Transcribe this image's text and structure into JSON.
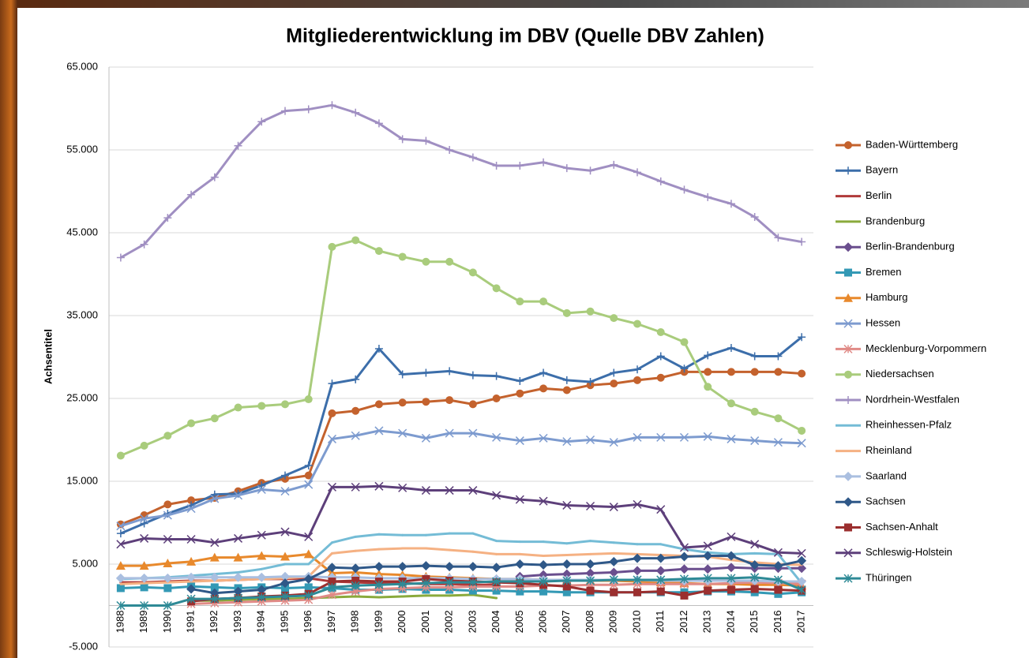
{
  "chart_data": {
    "type": "line",
    "title": "Mitgliederentwicklung im DBV (Quelle DBV Zahlen)",
    "y_label": "Achsentitel",
    "categories": [
      "1988",
      "1989",
      "1990",
      "1991",
      "1992",
      "1993",
      "1994",
      "1995",
      "1996",
      "1997",
      "1998",
      "1999",
      "2000",
      "2001",
      "2002",
      "2003",
      "2004",
      "2005",
      "2006",
      "2007",
      "2008",
      "2009",
      "2010",
      "2011",
      "2012",
      "2013",
      "2014",
      "2015",
      "2016",
      "2017"
    ],
    "ylim": [
      -5000,
      65000
    ],
    "yticks": [
      {
        "value": -5000,
        "label": "-5.000"
      },
      {
        "value": 5000,
        "label": "5.000"
      },
      {
        "value": 15000,
        "label": "15.000"
      },
      {
        "value": 25000,
        "label": "25.000"
      },
      {
        "value": 35000,
        "label": "35.000"
      },
      {
        "value": 45000,
        "label": "45.000"
      },
      {
        "value": 55000,
        "label": "55.000"
      },
      {
        "value": 65000,
        "label": "65.000"
      }
    ],
    "grid": true,
    "legend": "right",
    "series": [
      {
        "name": "Baden-Württemberg",
        "color": "#c4622d",
        "marker": "circle",
        "values": [
          9800,
          10900,
          12200,
          12700,
          13000,
          13800,
          14800,
          15300,
          15700,
          23200,
          23500,
          24300,
          24500,
          24600,
          24800,
          24300,
          25000,
          25600,
          26200,
          26000,
          26600,
          26800,
          27200,
          27500,
          28200,
          28200,
          28200,
          28200,
          28200,
          28000
        ]
      },
      {
        "name": "Bayern",
        "color": "#3c6eaa",
        "marker": "plus",
        "values": [
          8700,
          9900,
          11100,
          12100,
          13400,
          13500,
          14500,
          15700,
          16900,
          26800,
          27300,
          31000,
          27900,
          28100,
          28300,
          27800,
          27700,
          27100,
          28100,
          27200,
          27000,
          28100,
          28500,
          30100,
          28600,
          30200,
          31100,
          30100,
          30100,
          32400
        ]
      },
      {
        "name": "Berlin",
        "color": "#b03a3a",
        "marker": "none",
        "values": [
          2800,
          2800,
          2900,
          3000,
          3000,
          3100,
          3200,
          3200,
          3300,
          2900,
          2800,
          2700,
          2700,
          2600,
          2600,
          2500,
          2500,
          null,
          null,
          null,
          null,
          null,
          null,
          null,
          null,
          null,
          null,
          null,
          null,
          null
        ]
      },
      {
        "name": "Brandenburg",
        "color": "#8aaa3c",
        "marker": "none",
        "values": [
          null,
          null,
          null,
          600,
          600,
          700,
          800,
          800,
          900,
          1000,
          1100,
          1000,
          1100,
          1200,
          1200,
          1300,
          900,
          null,
          null,
          null,
          null,
          null,
          null,
          null,
          null,
          null,
          null,
          null,
          null,
          null
        ]
      },
      {
        "name": "Berlin-Brandenburg",
        "color": "#6a4e8e",
        "marker": "diamond",
        "values": [
          null,
          null,
          null,
          null,
          null,
          null,
          null,
          null,
          null,
          null,
          null,
          null,
          null,
          null,
          null,
          null,
          null,
          3500,
          3700,
          3800,
          3900,
          4000,
          4200,
          4200,
          4400,
          4400,
          4600,
          4500,
          4500,
          4500
        ]
      },
      {
        "name": "Bremen",
        "color": "#3399b5",
        "marker": "square",
        "values": [
          2100,
          2200,
          2100,
          2300,
          2200,
          2100,
          2200,
          2100,
          2200,
          2100,
          1900,
          1900,
          2000,
          1900,
          1900,
          1800,
          1800,
          1700,
          1700,
          1600,
          1600,
          1600,
          1600,
          1600,
          1600,
          1700,
          1700,
          1600,
          1400,
          1600
        ]
      },
      {
        "name": "Hamburg",
        "color": "#e8892c",
        "marker": "triangle",
        "values": [
          4800,
          4800,
          5100,
          5300,
          5800,
          5800,
          6000,
          5900,
          6200,
          3900,
          4000,
          3800,
          3700,
          3500,
          3400,
          3300,
          3200,
          3200,
          3100,
          3000,
          3000,
          3000,
          2900,
          2800,
          2700,
          2600,
          2600,
          2500,
          2500,
          2400
        ]
      },
      {
        "name": "Hessen",
        "color": "#7d9bcf",
        "marker": "x",
        "values": [
          9600,
          10500,
          10900,
          11700,
          12900,
          13300,
          14000,
          13800,
          14600,
          20100,
          20500,
          21100,
          20800,
          20200,
          20800,
          20800,
          20300,
          19900,
          20200,
          19800,
          20000,
          19700,
          20300,
          20300,
          20300,
          20400,
          20100,
          19900,
          19700,
          19600
        ]
      },
      {
        "name": "Mecklenburg-Vorpommern",
        "color": "#e08a86",
        "marker": "star",
        "values": [
          null,
          null,
          null,
          200,
          300,
          400,
          500,
          600,
          700,
          1300,
          1700,
          2000,
          2100,
          2200,
          2200,
          2300,
          2300,
          2300,
          2400,
          2400,
          2500,
          2500,
          2600,
          2600,
          2600,
          2600,
          2700,
          2800,
          2700,
          2600
        ]
      },
      {
        "name": "Niedersachsen",
        "color": "#a9cc7c",
        "marker": "circle",
        "values": [
          18100,
          19300,
          20500,
          22000,
          22600,
          23900,
          24100,
          24300,
          24900,
          43300,
          44100,
          42800,
          42100,
          41500,
          41500,
          40200,
          38300,
          36700,
          36700,
          35300,
          35500,
          34700,
          34000,
          33000,
          31800,
          26400,
          24400,
          23400,
          22600,
          21100
        ]
      },
      {
        "name": "Nordrhein-Westfalen",
        "color": "#a08fc2",
        "marker": "plus",
        "values": [
          42000,
          43600,
          46800,
          49600,
          51700,
          55500,
          58400,
          59700,
          59900,
          60400,
          59500,
          58200,
          56300,
          56100,
          55000,
          54100,
          53100,
          53100,
          53500,
          52800,
          52500,
          53200,
          52300,
          51200,
          50200,
          49300,
          48500,
          46900,
          44400,
          43900
        ]
      },
      {
        "name": "Rheinhessen-Pfalz",
        "color": "#74bcd6",
        "marker": "none",
        "values": [
          3200,
          3300,
          3400,
          3600,
          3800,
          4000,
          4400,
          5000,
          5000,
          7600,
          8300,
          8600,
          8500,
          8500,
          8700,
          8700,
          7800,
          7700,
          7700,
          7500,
          7800,
          7600,
          7400,
          7400,
          6800,
          6400,
          6200,
          6300,
          6200,
          2700
        ]
      },
      {
        "name": "Rheinland",
        "color": "#f5b183",
        "marker": "none",
        "values": [
          2600,
          2700,
          2800,
          2900,
          3000,
          3100,
          3200,
          3300,
          3500,
          6300,
          6600,
          6800,
          6900,
          6900,
          6700,
          6500,
          6200,
          6200,
          6000,
          6100,
          6200,
          6300,
          6200,
          6100,
          6000,
          5900,
          5500,
          5200,
          5000,
          4900
        ]
      },
      {
        "name": "Saarland",
        "color": "#aabfe0",
        "marker": "diamond",
        "values": [
          3300,
          3300,
          3300,
          3400,
          3400,
          3400,
          3400,
          3500,
          3500,
          3400,
          3400,
          3300,
          3300,
          3300,
          3300,
          3200,
          3200,
          3200,
          3100,
          3100,
          3100,
          3100,
          3100,
          3000,
          3000,
          3000,
          3000,
          3000,
          2900,
          2900
        ]
      },
      {
        "name": "Sachsen",
        "color": "#2f5888",
        "marker": "diamond",
        "values": [
          null,
          null,
          null,
          2000,
          1500,
          1700,
          1900,
          2700,
          3200,
          4600,
          4500,
          4700,
          4700,
          4800,
          4700,
          4700,
          4600,
          5000,
          4900,
          5000,
          5000,
          5300,
          5700,
          5700,
          5900,
          6000,
          6000,
          4900,
          4800,
          5400
        ]
      },
      {
        "name": "Sachsen-Anhalt",
        "color": "#9b2f2f",
        "marker": "square",
        "values": [
          null,
          null,
          null,
          500,
          800,
          900,
          1100,
          1200,
          1400,
          2900,
          3000,
          2900,
          2900,
          3200,
          3000,
          2900,
          2800,
          2700,
          2500,
          2300,
          1800,
          1600,
          1600,
          1700,
          1200,
          1800,
          1900,
          2000,
          1900,
          1800
        ]
      },
      {
        "name": "Schleswig-Holstein",
        "color": "#5d3f7a",
        "marker": "x",
        "values": [
          7400,
          8100,
          8000,
          8000,
          7600,
          8100,
          8500,
          8900,
          8300,
          14300,
          14300,
          14400,
          14200,
          13900,
          13900,
          13900,
          13300,
          12800,
          12600,
          12100,
          12000,
          11900,
          12200,
          11600,
          7000,
          7200,
          8300,
          7400,
          6400,
          6300
        ]
      },
      {
        "name": "Thüringen",
        "color": "#2e8a96",
        "marker": "star",
        "values": [
          0,
          0,
          0,
          800,
          800,
          900,
          1000,
          1100,
          1200,
          2200,
          2400,
          2500,
          2600,
          2700,
          2800,
          2800,
          2900,
          2900,
          2900,
          3000,
          3000,
          3100,
          3100,
          3100,
          3200,
          3300,
          3300,
          3400,
          3100,
          1900
        ]
      }
    ]
  }
}
